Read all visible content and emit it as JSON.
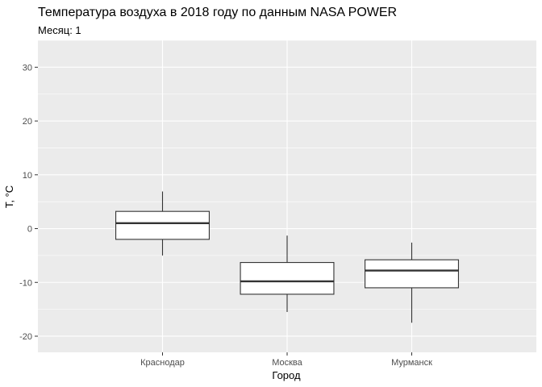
{
  "chart_data": {
    "type": "boxplot",
    "title": "Температура воздуха в 2018 году по данным NASA POWER",
    "subtitle": "Месяц: 1",
    "xlabel": "Город",
    "ylabel": "T, °C",
    "ylim": [
      -23,
      35
    ],
    "yticks": [
      -20,
      -10,
      0,
      10,
      20,
      30
    ],
    "grid": true,
    "categories": [
      "Краснодар",
      "Москва",
      "Мурманск"
    ],
    "boxes": [
      {
        "category": "Краснодар",
        "min": -5,
        "q1": -2,
        "median": 1,
        "q3": 3.2,
        "max": 6.9
      },
      {
        "category": "Москва",
        "min": -15.5,
        "q1": -12.2,
        "median": -9.8,
        "q3": -6.3,
        "max": -1.3
      },
      {
        "category": "Мурманск",
        "min": -17.5,
        "q1": -11,
        "median": -7.8,
        "q3": -5.8,
        "max": -2.6
      }
    ]
  }
}
